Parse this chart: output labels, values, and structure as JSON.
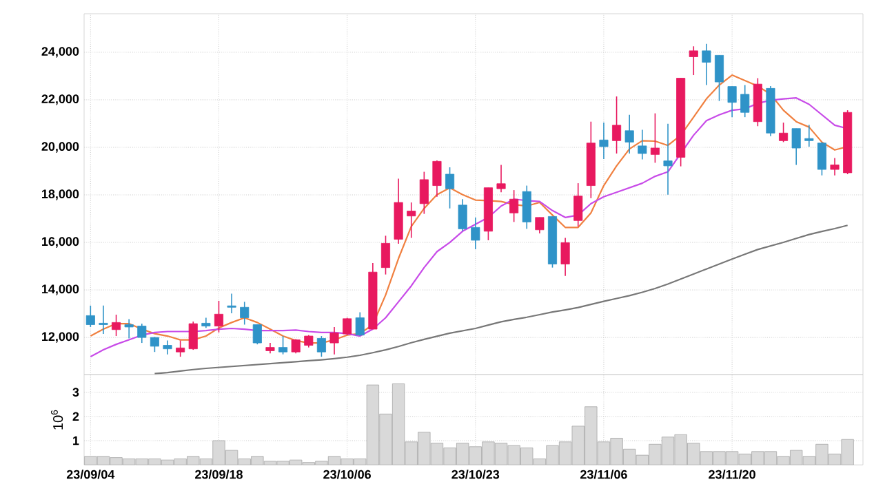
{
  "chart_data": [
    {
      "type": "candlestick",
      "categories": [
        null,
        null,
        null,
        null,
        null,
        null,
        null,
        null,
        null,
        null,
        null,
        null,
        null,
        null,
        null,
        null,
        null,
        null,
        null,
        null,
        null,
        null,
        null,
        null,
        null,
        null,
        null,
        null,
        null,
        null,
        null,
        null,
        null,
        null,
        null,
        null,
        null,
        null,
        null,
        null,
        null,
        null,
        null,
        null,
        null,
        null,
        null,
        null,
        null,
        null,
        null,
        null,
        null,
        null,
        null,
        null,
        null,
        null,
        null,
        null
      ],
      "tick_labels": "y",
      "grid": true,
      "ylim": [
        10440,
        25620
      ],
      "yticks": [
        {
          "value": 12000,
          "label": "12,000"
        },
        {
          "value": 14000,
          "label": "14,000"
        },
        {
          "value": 16000,
          "label": "16,000"
        },
        {
          "value": 18000,
          "label": "18,000"
        },
        {
          "value": 20000,
          "label": "20,000"
        },
        {
          "value": 22000,
          "label": "22,000"
        },
        {
          "value": 24000,
          "label": "24,000"
        }
      ],
      "ohlc": [
        [
          12920,
          13340,
          12440,
          12540
        ],
        [
          12600,
          13340,
          12150,
          12540
        ],
        [
          12330,
          12960,
          12060,
          12630
        ],
        [
          12540,
          12770,
          11960,
          12440
        ],
        [
          12480,
          12580,
          11770,
          12000
        ],
        [
          12000,
          12020,
          11390,
          11630
        ],
        [
          11670,
          11870,
          11290,
          11520
        ],
        [
          11390,
          11870,
          11190,
          11560
        ],
        [
          11520,
          12670,
          11480,
          12580
        ],
        [
          12600,
          12830,
          12400,
          12480
        ],
        [
          12480,
          13540,
          12210,
          12980
        ],
        [
          13330,
          13840,
          13020,
          13270
        ],
        [
          13270,
          13500,
          12540,
          12830
        ],
        [
          12540,
          12540,
          11710,
          11770
        ],
        [
          11440,
          11770,
          11330,
          11580
        ],
        [
          11580,
          12060,
          11290,
          11390
        ],
        [
          11390,
          11930,
          11330,
          11900
        ],
        [
          11670,
          12100,
          11580,
          12060
        ],
        [
          11960,
          12060,
          11190,
          11390
        ],
        [
          11770,
          12440,
          11290,
          12190
        ],
        [
          12150,
          12830,
          12100,
          12790
        ],
        [
          12830,
          13060,
          12060,
          12100
        ],
        [
          12350,
          15130,
          12350,
          14750
        ],
        [
          14940,
          16280,
          14650,
          15960
        ],
        [
          16130,
          18680,
          15940,
          17680
        ],
        [
          17110,
          17680,
          16190,
          17320
        ],
        [
          17630,
          18970,
          17200,
          18640
        ],
        [
          18390,
          19450,
          17920,
          19410
        ],
        [
          18870,
          19160,
          17430,
          18260
        ],
        [
          17570,
          17820,
          16470,
          16570
        ],
        [
          16630,
          17050,
          15710,
          16090
        ],
        [
          16470,
          18300,
          16090,
          18300
        ],
        [
          18260,
          19260,
          18110,
          18470
        ],
        [
          17240,
          18200,
          16860,
          17820
        ],
        [
          18140,
          18390,
          16570,
          16860
        ],
        [
          16530,
          17050,
          16380,
          17050
        ],
        [
          17090,
          17090,
          14940,
          15090
        ],
        [
          15090,
          16190,
          14590,
          15990
        ],
        [
          16920,
          18490,
          16670,
          17950
        ],
        [
          18390,
          21080,
          17860,
          20180
        ],
        [
          20310,
          21040,
          19510,
          20030
        ],
        [
          20280,
          22140,
          19740,
          20930
        ],
        [
          20700,
          21370,
          19740,
          20220
        ],
        [
          20060,
          20740,
          19490,
          19740
        ],
        [
          19700,
          21430,
          19350,
          19970
        ],
        [
          19430,
          20990,
          18010,
          19220
        ],
        [
          19580,
          22910,
          19200,
          22910
        ],
        [
          23810,
          24250,
          23040,
          24060
        ],
        [
          24060,
          24350,
          22620,
          23580
        ],
        [
          23870,
          23870,
          21950,
          22750
        ],
        [
          22560,
          22560,
          21270,
          21890
        ],
        [
          22230,
          22620,
          21270,
          21470
        ],
        [
          21080,
          22910,
          20890,
          22660
        ],
        [
          22480,
          22580,
          20470,
          20600
        ],
        [
          20280,
          21040,
          20220,
          20600
        ],
        [
          20790,
          20790,
          19260,
          19970
        ],
        [
          20370,
          20950,
          20030,
          20280
        ],
        [
          20180,
          20220,
          18820,
          19070
        ],
        [
          19070,
          19550,
          18820,
          19260
        ],
        [
          18930,
          21560,
          18870,
          21470
        ]
      ],
      "colors": [
        "#2f93c8",
        "#2f93c8",
        "#e8195f",
        "#2f93c8",
        "#2f93c8",
        "#2f93c8",
        "#2f93c8",
        "#e8195f",
        "#e8195f",
        "#2f93c8",
        "#e8195f",
        "#2f93c8",
        "#2f93c8",
        "#2f93c8",
        "#e8195f",
        "#2f93c8",
        "#e8195f",
        "#e8195f",
        "#2f93c8",
        "#e8195f",
        "#e8195f",
        "#2f93c8",
        "#e8195f",
        "#e8195f",
        "#e8195f",
        "#e8195f",
        "#e8195f",
        "#e8195f",
        "#2f93c8",
        "#2f93c8",
        "#2f93c8",
        "#e8195f",
        "#e8195f",
        "#e8195f",
        "#2f93c8",
        "#e8195f",
        "#2f93c8",
        "#e8195f",
        "#e8195f",
        "#e8195f",
        "#2f93c8",
        "#e8195f",
        "#2f93c8",
        "#2f93c8",
        "#e8195f",
        "#2f93c8",
        "#e8195f",
        "#e8195f",
        "#2f93c8",
        "#2f93c8",
        "#2f93c8",
        "#2f93c8",
        "#e8195f",
        "#2f93c8",
        "#e8195f",
        "#2f93c8",
        "#2f93c8",
        "#2f93c8",
        "#e8195f",
        "#e8195f"
      ],
      "series": [
        {
          "type": "line",
          "color": "#f08040",
          "values": [
            12060,
            12350,
            12580,
            12580,
            12350,
            12160,
            12060,
            11900,
            11900,
            12060,
            12400,
            12630,
            12830,
            12630,
            12350,
            12060,
            11870,
            11770,
            11770,
            11900,
            12100,
            12160,
            12540,
            13790,
            15320,
            16670,
            17430,
            18010,
            18300,
            18010,
            17780,
            17760,
            17720,
            17590,
            17530,
            17680,
            17150,
            16630,
            16630,
            17240,
            18390,
            19220,
            19930,
            20280,
            20260,
            20080,
            20510,
            21270,
            22040,
            22620,
            23040,
            22810,
            22580,
            22230,
            21560,
            21080,
            20850,
            20220,
            19890,
            20030
          ]
        },
        {
          "type": "line",
          "color": "#c84be8",
          "values": [
            11190,
            11480,
            11710,
            11900,
            12100,
            12210,
            12250,
            12250,
            12250,
            12290,
            12350,
            12380,
            12350,
            12290,
            12290,
            12290,
            12310,
            12250,
            12210,
            12210,
            12160,
            12060,
            12350,
            12830,
            13500,
            14170,
            14940,
            15610,
            16000,
            16470,
            16760,
            17050,
            17530,
            17820,
            17760,
            17720,
            17340,
            17050,
            17150,
            17630,
            17920,
            18110,
            18300,
            18490,
            18780,
            18970,
            19740,
            20510,
            21120,
            21370,
            21560,
            21620,
            21850,
            21980,
            22040,
            22080,
            21810,
            21370,
            20930,
            20790
          ]
        },
        {
          "type": "line",
          "color": "#777777",
          "values": [
            null,
            null,
            null,
            null,
            null,
            10480,
            10520,
            10590,
            10650,
            10700,
            10740,
            10780,
            10820,
            10860,
            10900,
            10940,
            10980,
            11020,
            11060,
            11110,
            11170,
            11250,
            11360,
            11480,
            11620,
            11780,
            11920,
            12050,
            12180,
            12280,
            12380,
            12520,
            12660,
            12760,
            12850,
            12960,
            13070,
            13160,
            13260,
            13390,
            13520,
            13640,
            13760,
            13900,
            14060,
            14250,
            14460,
            14670,
            14880,
            15090,
            15300,
            15500,
            15700,
            15850,
            16000,
            16170,
            16330,
            16460,
            16580,
            16720
          ]
        }
      ]
    },
    {
      "type": "bar",
      "categories": [
        "23/09/04",
        null,
        null,
        null,
        null,
        null,
        null,
        null,
        null,
        null,
        "23/09/18",
        null,
        null,
        null,
        null,
        null,
        null,
        null,
        null,
        null,
        "23/10/06",
        null,
        null,
        null,
        null,
        null,
        null,
        null,
        null,
        null,
        "23/10/23",
        null,
        null,
        null,
        null,
        null,
        null,
        null,
        null,
        null,
        "23/11/06",
        null,
        null,
        null,
        null,
        null,
        null,
        null,
        null,
        null,
        "23/11/20",
        null,
        null,
        null,
        null,
        null,
        null,
        null,
        null,
        null
      ],
      "values": [
        0.35,
        0.35,
        0.3,
        0.25,
        0.25,
        0.25,
        0.2,
        0.25,
        0.35,
        0.25,
        1.0,
        0.6,
        0.25,
        0.35,
        0.15,
        0.15,
        0.2,
        0.1,
        0.15,
        0.35,
        0.25,
        0.25,
        3.3,
        2.1,
        3.35,
        0.95,
        1.35,
        0.9,
        0.7,
        0.9,
        0.75,
        0.95,
        0.9,
        0.8,
        0.7,
        0.25,
        0.8,
        0.95,
        1.6,
        2.4,
        0.95,
        1.1,
        0.65,
        0.4,
        0.85,
        1.15,
        1.25,
        0.9,
        0.55,
        0.55,
        0.55,
        0.45,
        0.55,
        0.55,
        0.35,
        0.6,
        0.35,
        0.85,
        0.45,
        1.05
      ],
      "color": "#d9d9d9",
      "ylim": [
        0,
        3.73
      ],
      "yticks": [
        1,
        2,
        3
      ],
      "ylabel": "10$^{6}$",
      "grid": true
    }
  ]
}
